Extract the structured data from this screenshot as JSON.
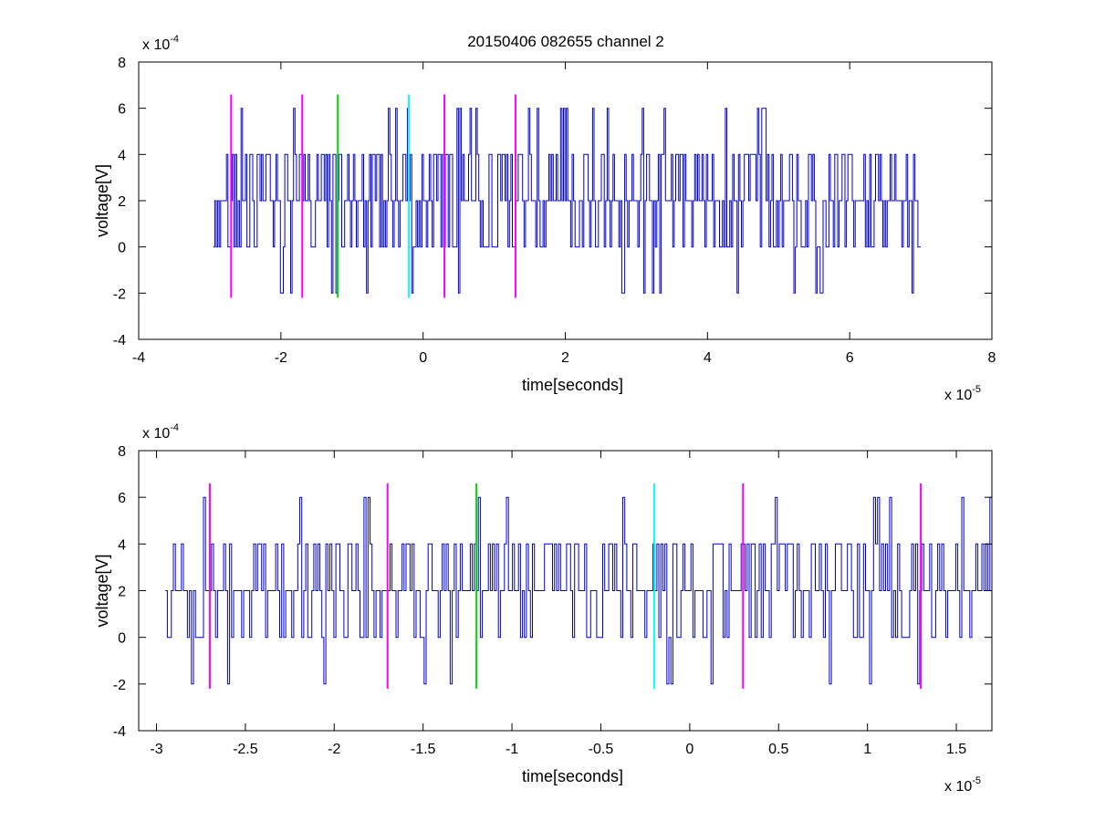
{
  "figure": {
    "title": "20150406 082655 channel 2"
  },
  "chart_data": [
    {
      "type": "line",
      "title": "20150406 082655 channel 2",
      "xlabel": "time[seconds]",
      "ylabel": "voltage[V]",
      "x_multiplier": "x 10",
      "x_exponent": "-5",
      "y_multiplier": "x 10",
      "y_exponent": "-4",
      "xlim": [
        -4,
        8
      ],
      "ylim": [
        -4,
        8
      ],
      "x_ticks": [
        -4,
        -2,
        0,
        2,
        4,
        6,
        8
      ],
      "x_tick_labels": [
        "-4",
        "-2",
        "0",
        "2",
        "4",
        "6",
        "8"
      ],
      "y_ticks": [
        -4,
        -2,
        0,
        2,
        4,
        6,
        8
      ],
      "y_tick_labels": [
        "-4",
        "-2",
        "0",
        "2",
        "4",
        "6",
        "8"
      ],
      "grid": false,
      "signal": {
        "color": "#0000cc",
        "x_range": [
          -2.95,
          7.0
        ],
        "levels": [
          -2,
          0,
          2,
          4,
          6
        ],
        "baseline": 2
      },
      "markers": [
        {
          "x": -2.7,
          "y_range": [
            -2.2,
            6.6
          ],
          "color": "#ff00ff"
        },
        {
          "x": -1.7,
          "y_range": [
            -2.2,
            6.6
          ],
          "color": "#ff00ff"
        },
        {
          "x": -1.2,
          "y_range": [
            -2.2,
            6.6
          ],
          "color": "#00dd00"
        },
        {
          "x": -0.2,
          "y_range": [
            -2.2,
            6.6
          ],
          "color": "#00ffff"
        },
        {
          "x": 0.3,
          "y_range": [
            -2.2,
            6.6
          ],
          "color": "#ff00ff"
        },
        {
          "x": 1.3,
          "y_range": [
            -2.2,
            6.6
          ],
          "color": "#ff00ff"
        }
      ]
    },
    {
      "type": "line",
      "title": "",
      "xlabel": "time[seconds]",
      "ylabel": "voltage[V]",
      "x_multiplier": "x 10",
      "x_exponent": "-5",
      "y_multiplier": "x 10",
      "y_exponent": "-4",
      "xlim": [
        -3.1,
        1.7
      ],
      "ylim": [
        -4,
        8
      ],
      "x_ticks": [
        -3,
        -2.5,
        -2,
        -1.5,
        -1,
        -0.5,
        0,
        0.5,
        1,
        1.5
      ],
      "x_tick_labels": [
        "-3",
        "-2.5",
        "-2",
        "-1.5",
        "-1",
        "-0.5",
        "0",
        "0.5",
        "1",
        "1.5"
      ],
      "y_ticks": [
        -4,
        -2,
        0,
        2,
        4,
        6,
        8
      ],
      "y_tick_labels": [
        "-4",
        "-2",
        "0",
        "2",
        "4",
        "6",
        "8"
      ],
      "grid": false,
      "signal": {
        "color": "#0000cc",
        "x_range": [
          -2.95,
          1.7
        ],
        "levels": [
          -2,
          0,
          2,
          4,
          6
        ],
        "baseline": 2
      },
      "markers": [
        {
          "x": -2.7,
          "y_range": [
            -2.2,
            6.6
          ],
          "color": "#ff00ff"
        },
        {
          "x": -1.7,
          "y_range": [
            -2.2,
            6.6
          ],
          "color": "#ff00ff"
        },
        {
          "x": -1.2,
          "y_range": [
            -2.2,
            6.6
          ],
          "color": "#00dd00"
        },
        {
          "x": -0.2,
          "y_range": [
            -2.2,
            6.6
          ],
          "color": "#00ffff"
        },
        {
          "x": 0.3,
          "y_range": [
            -2.2,
            6.6
          ],
          "color": "#ff00ff"
        },
        {
          "x": 1.3,
          "y_range": [
            -2.2,
            6.6
          ],
          "color": "#ff00ff"
        }
      ]
    }
  ]
}
